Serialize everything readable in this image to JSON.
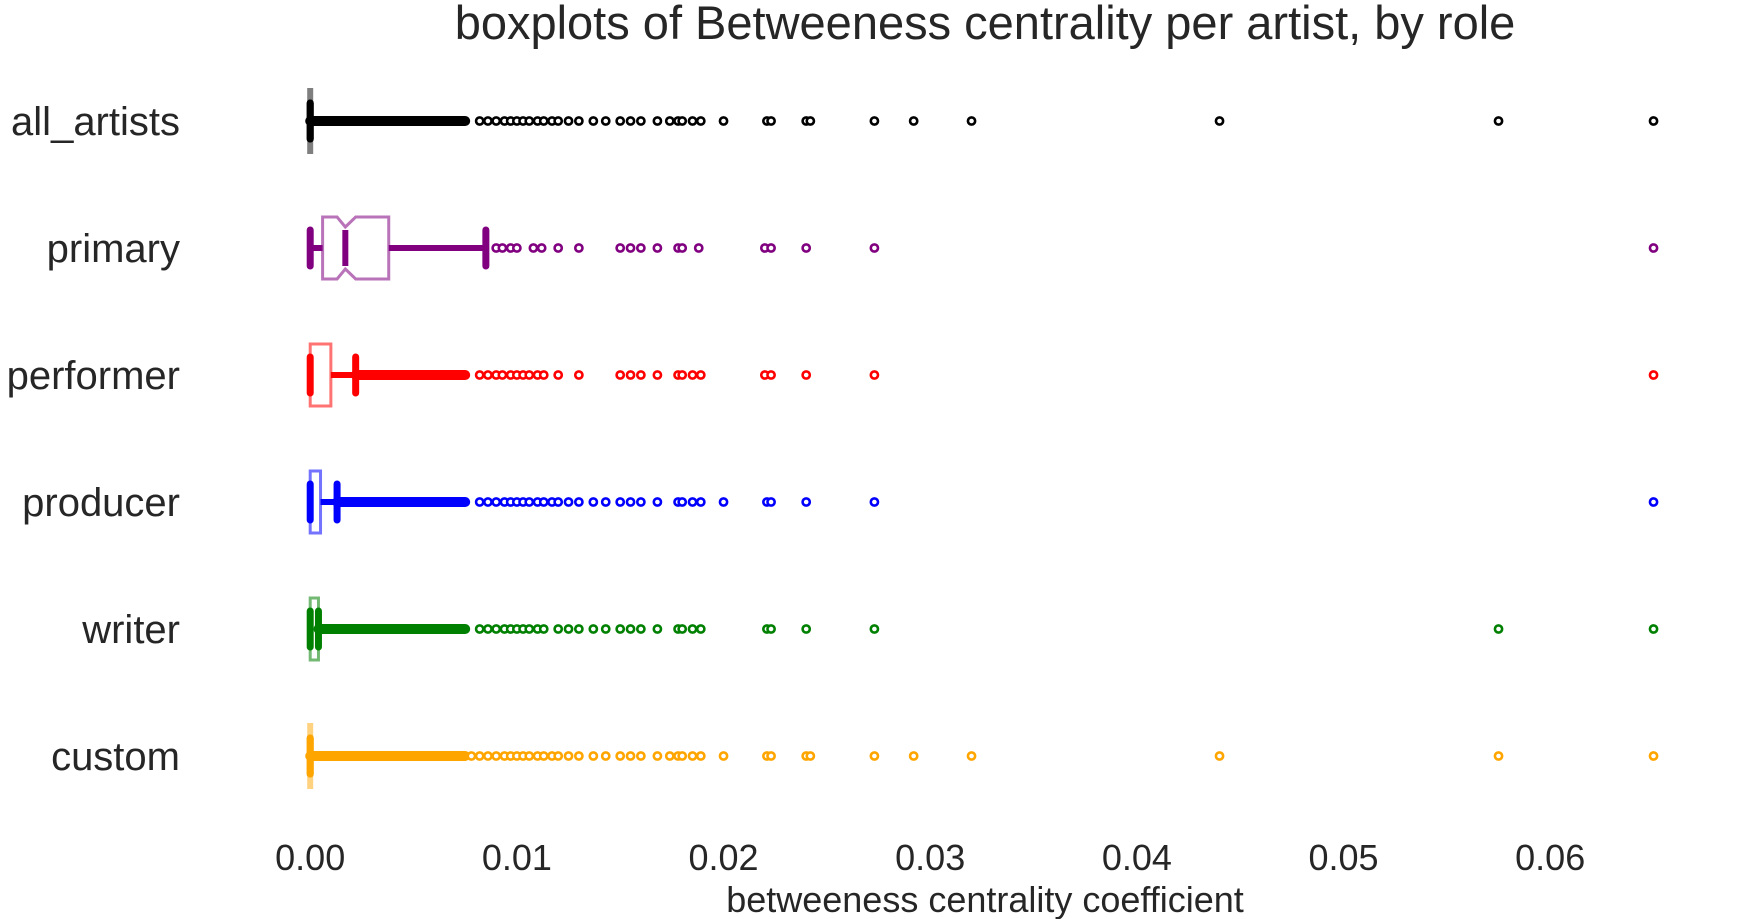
{
  "chart_data": {
    "type": "boxplot",
    "orientation": "horizontal",
    "notched": true,
    "title": "boxplots of Betweeness centrality per artist, by role",
    "xlabel": "betweeness centrality coefficient",
    "ylabel": "",
    "xlim": [
      -0.0018,
      0.0672
    ],
    "x_ticks": [
      0.0,
      0.01,
      0.02,
      0.03,
      0.04,
      0.05,
      0.06
    ],
    "x_tick_labels": [
      "0.00",
      "0.01",
      "0.02",
      "0.03",
      "0.04",
      "0.05",
      "0.06"
    ],
    "grid": false,
    "categories": [
      "all_artists",
      "primary",
      "performer",
      "producer",
      "writer",
      "custom"
    ],
    "series": [
      {
        "category": "all_artists",
        "color": "#000000",
        "q1": 0.0,
        "median": 0.0,
        "q3": 0.0,
        "whisker_low": 0.0,
        "whisker_high": 0.0,
        "notch_low": 0.0,
        "notch_high": 0.0,
        "dense_outlier_range": [
          0.0,
          0.0075
        ],
        "outliers": [
          0.0082,
          0.0086,
          0.009,
          0.0094,
          0.0097,
          0.01,
          0.0103,
          0.0106,
          0.011,
          0.0113,
          0.0117,
          0.012,
          0.0125,
          0.013,
          0.0137,
          0.0143,
          0.015,
          0.0155,
          0.016,
          0.0168,
          0.0174,
          0.0178,
          0.018,
          0.0185,
          0.0189,
          0.02,
          0.0221,
          0.0223,
          0.024,
          0.0242,
          0.0273,
          0.0292,
          0.032,
          0.044,
          0.0575,
          0.065
        ]
      },
      {
        "category": "primary",
        "color": "#800080",
        "q1": 0.0006,
        "median": 0.0017,
        "q3": 0.0038,
        "whisker_low": 0.0,
        "whisker_high": 0.0085,
        "notch_low": 0.0013,
        "notch_high": 0.0022,
        "dense_outlier_range": null,
        "outliers": [
          0.009,
          0.0093,
          0.0097,
          0.01,
          0.0108,
          0.0112,
          0.012,
          0.013,
          0.015,
          0.0155,
          0.016,
          0.0168,
          0.0178,
          0.018,
          0.0188,
          0.022,
          0.0223,
          0.024,
          0.0273,
          0.065
        ]
      },
      {
        "category": "performer",
        "color": "#ff0000",
        "q1": 0.0,
        "median": 0.0,
        "q3": 0.001,
        "whisker_low": 0.0,
        "whisker_high": 0.0022,
        "notch_low": 0.0,
        "notch_high": 0.0,
        "dense_outlier_range": [
          0.0022,
          0.0075
        ],
        "outliers": [
          0.0082,
          0.0086,
          0.009,
          0.0093,
          0.0097,
          0.01,
          0.0103,
          0.0106,
          0.011,
          0.0113,
          0.012,
          0.013,
          0.015,
          0.0155,
          0.016,
          0.0168,
          0.0178,
          0.018,
          0.0185,
          0.0189,
          0.022,
          0.0223,
          0.024,
          0.0273,
          0.065
        ]
      },
      {
        "category": "producer",
        "color": "#0000ff",
        "q1": 0.0,
        "median": 0.0,
        "q3": 0.0005,
        "whisker_low": 0.0,
        "whisker_high": 0.0013,
        "notch_low": 0.0,
        "notch_high": 0.0,
        "dense_outlier_range": [
          0.0013,
          0.0075
        ],
        "outliers": [
          0.0082,
          0.0086,
          0.009,
          0.0094,
          0.0097,
          0.01,
          0.0103,
          0.0106,
          0.011,
          0.0113,
          0.0117,
          0.012,
          0.0125,
          0.013,
          0.0137,
          0.0143,
          0.015,
          0.0155,
          0.016,
          0.0168,
          0.0178,
          0.018,
          0.0185,
          0.0189,
          0.02,
          0.0221,
          0.0223,
          0.024,
          0.0273,
          0.065
        ]
      },
      {
        "category": "writer",
        "color": "#008000",
        "q1": 0.0,
        "median": 0.0,
        "q3": 0.0004,
        "whisker_low": 0.0,
        "whisker_high": 0.0004,
        "notch_low": 0.0,
        "notch_high": 0.0,
        "dense_outlier_range": [
          0.0004,
          0.0075
        ],
        "outliers": [
          0.0082,
          0.0086,
          0.009,
          0.0094,
          0.0097,
          0.01,
          0.0103,
          0.0106,
          0.011,
          0.0113,
          0.012,
          0.0125,
          0.013,
          0.0137,
          0.0143,
          0.015,
          0.0155,
          0.016,
          0.0168,
          0.0178,
          0.018,
          0.0185,
          0.0189,
          0.0221,
          0.0223,
          0.024,
          0.0273,
          0.0575,
          0.065
        ]
      },
      {
        "category": "custom",
        "color": "#ffa500",
        "q1": 0.0,
        "median": 0.0,
        "q3": 0.0,
        "whisker_low": 0.0,
        "whisker_high": 0.0,
        "notch_low": 0.0,
        "notch_high": 0.0,
        "dense_outlier_range": [
          0.0,
          0.0075
        ],
        "outliers": [
          0.0078,
          0.0082,
          0.0086,
          0.009,
          0.0094,
          0.0097,
          0.01,
          0.0103,
          0.0106,
          0.011,
          0.0113,
          0.0117,
          0.012,
          0.0125,
          0.013,
          0.0137,
          0.0143,
          0.015,
          0.0155,
          0.016,
          0.0168,
          0.0174,
          0.0178,
          0.018,
          0.0185,
          0.0189,
          0.02,
          0.0221,
          0.0223,
          0.024,
          0.0242,
          0.0273,
          0.0292,
          0.032,
          0.044,
          0.0575,
          0.065
        ]
      }
    ]
  }
}
